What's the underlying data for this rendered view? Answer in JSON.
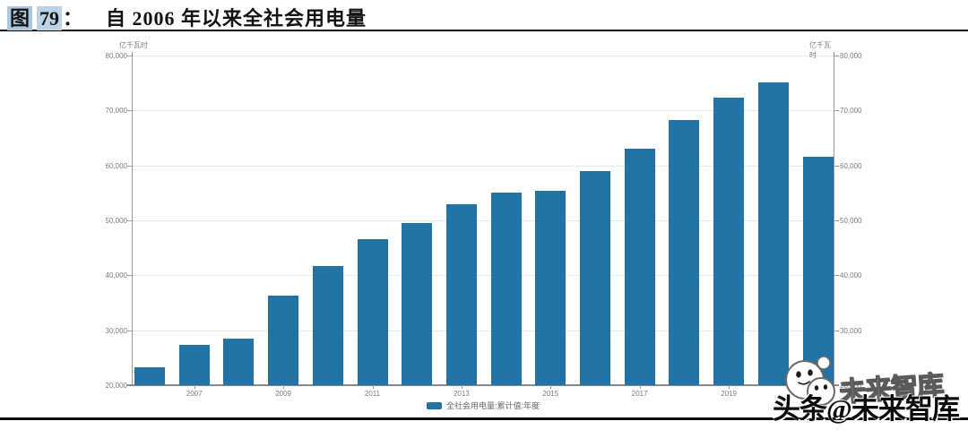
{
  "header": {
    "figure_label": "图",
    "figure_number": "79",
    "colon": "：",
    "title": "自 2006 年以来全社会用电量"
  },
  "watermark": {
    "prefix_and_name": "头条@未来智库",
    "ghost_name": "未来智库",
    "logo_icon": "wechat-logo"
  },
  "chart_data": {
    "type": "bar",
    "title": "自 2006 年以来全社会用电量",
    "categories": [
      "2006",
      "2007",
      "2008",
      "2009",
      "2010",
      "2011",
      "2012",
      "2013",
      "2014",
      "2015",
      "2016",
      "2017",
      "2018",
      "2019",
      "2020",
      "2021"
    ],
    "values": [
      23300,
      27300,
      28500,
      36300,
      41700,
      46600,
      49500,
      53000,
      55100,
      55400,
      59000,
      63100,
      68300,
      72400,
      75100,
      61500
    ],
    "x_tick_labels": [
      "2007",
      "2009",
      "2011",
      "2013",
      "2015",
      "2017",
      "2019"
    ],
    "y_ticks": [
      20000,
      30000,
      40000,
      50000,
      60000,
      70000,
      80000
    ],
    "ylim": [
      20000,
      80000
    ],
    "ylabel_left": "亿千瓦时",
    "ylabel_right": "亿千瓦时",
    "legend_label": "全社会用电量:累计值:年度",
    "bar_color": "#2173a5",
    "grid": true,
    "legend_position": "bottom-center"
  }
}
